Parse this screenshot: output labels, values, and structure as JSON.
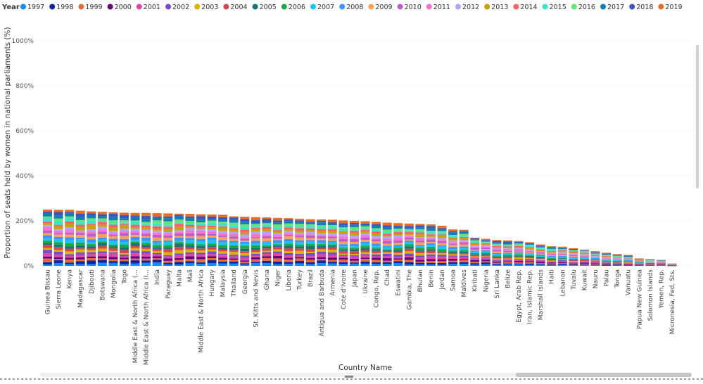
{
  "chart_data": {
    "type": "bar",
    "stacked": true,
    "title": "",
    "legend_title": "Year",
    "legend_position": "top-left",
    "xlabel": "Country Name",
    "ylabel": "Proportion of seats held by women in national parliaments (%)",
    "ylim": [
      0,
      1000
    ],
    "y_ticks": [
      "0%",
      "200%",
      "400%",
      "600%",
      "800%",
      "1000%"
    ],
    "grid": true,
    "series_names": [
      "1997",
      "1998",
      "1999",
      "2000",
      "2001",
      "2002",
      "2003",
      "2004",
      "2005",
      "2006",
      "2007",
      "2008",
      "2009",
      "2010",
      "2011",
      "2012",
      "2013",
      "2014",
      "2015",
      "2016",
      "2017",
      "2018",
      "2019"
    ],
    "colors": [
      "#118DFF",
      "#12239E",
      "#E66C37",
      "#6B007B",
      "#E044A7",
      "#744EC2",
      "#D9B300",
      "#D64550",
      "#197278",
      "#1AAB40",
      "#15C6F4",
      "#4092FF",
      "#FFA058",
      "#BE5DC9",
      "#F472D0",
      "#B5A1FF",
      "#C4A200",
      "#FD625E",
      "#3BE4C6",
      "#65E271",
      "#0E7FB5",
      "#3A56BD",
      "#EA6A21"
    ],
    "categories": [
      "Guinea Bissau",
      "Sierra Leone",
      "Kenya",
      "Madagascar",
      "Djibouti",
      "Botswana",
      "Mongolia",
      "Togo",
      "Middle East & North Africa (...",
      "Middle East & North Africa (I...",
      "India",
      "Paraguay",
      "Malta",
      "Mali",
      "Middle East & North Africa",
      "Hungary",
      "Malaysia",
      "Thailand",
      "Georgia",
      "St. Kitts and Nevis",
      "Ghana",
      "Niger",
      "Liberia",
      "Turkey",
      "Brazil",
      "Antigua and Barbuda",
      "Armenia",
      "Cote d'Ivoire",
      "Japan",
      "Ukraine",
      "Congo, Rep.",
      "Chad",
      "Eswatini",
      "Gambia, The",
      "Bhutan",
      "Benin",
      "Jordan",
      "Samoa",
      "Maldives",
      "Kiribati",
      "Nigeria",
      "Sri Lanka",
      "Belize",
      "Egypt, Arab Rep.",
      "Iran, Islamic Rep.",
      "Marshall Islands",
      "Haiti",
      "Lebanon",
      "Tuvalu",
      "Kuwait",
      "Nauru",
      "Palau",
      "Tonga",
      "Vanuatu",
      "Papua New Guinea",
      "Solomon Islands",
      "Yemen, Rep.",
      "Micronesia, Fed. Sts."
    ],
    "totals": [
      250,
      249,
      249,
      245,
      242,
      240,
      238,
      236,
      235,
      235,
      234,
      233,
      232,
      231,
      229,
      228,
      227,
      220,
      218,
      216,
      215,
      213,
      212,
      209,
      207,
      206,
      205,
      202,
      200,
      198,
      195,
      192,
      190,
      188,
      186,
      184,
      178,
      162,
      160,
      125,
      120,
      115,
      113,
      110,
      105,
      95,
      87,
      85,
      78,
      72,
      65,
      58,
      52,
      48,
      33,
      30,
      26,
      10
    ]
  }
}
